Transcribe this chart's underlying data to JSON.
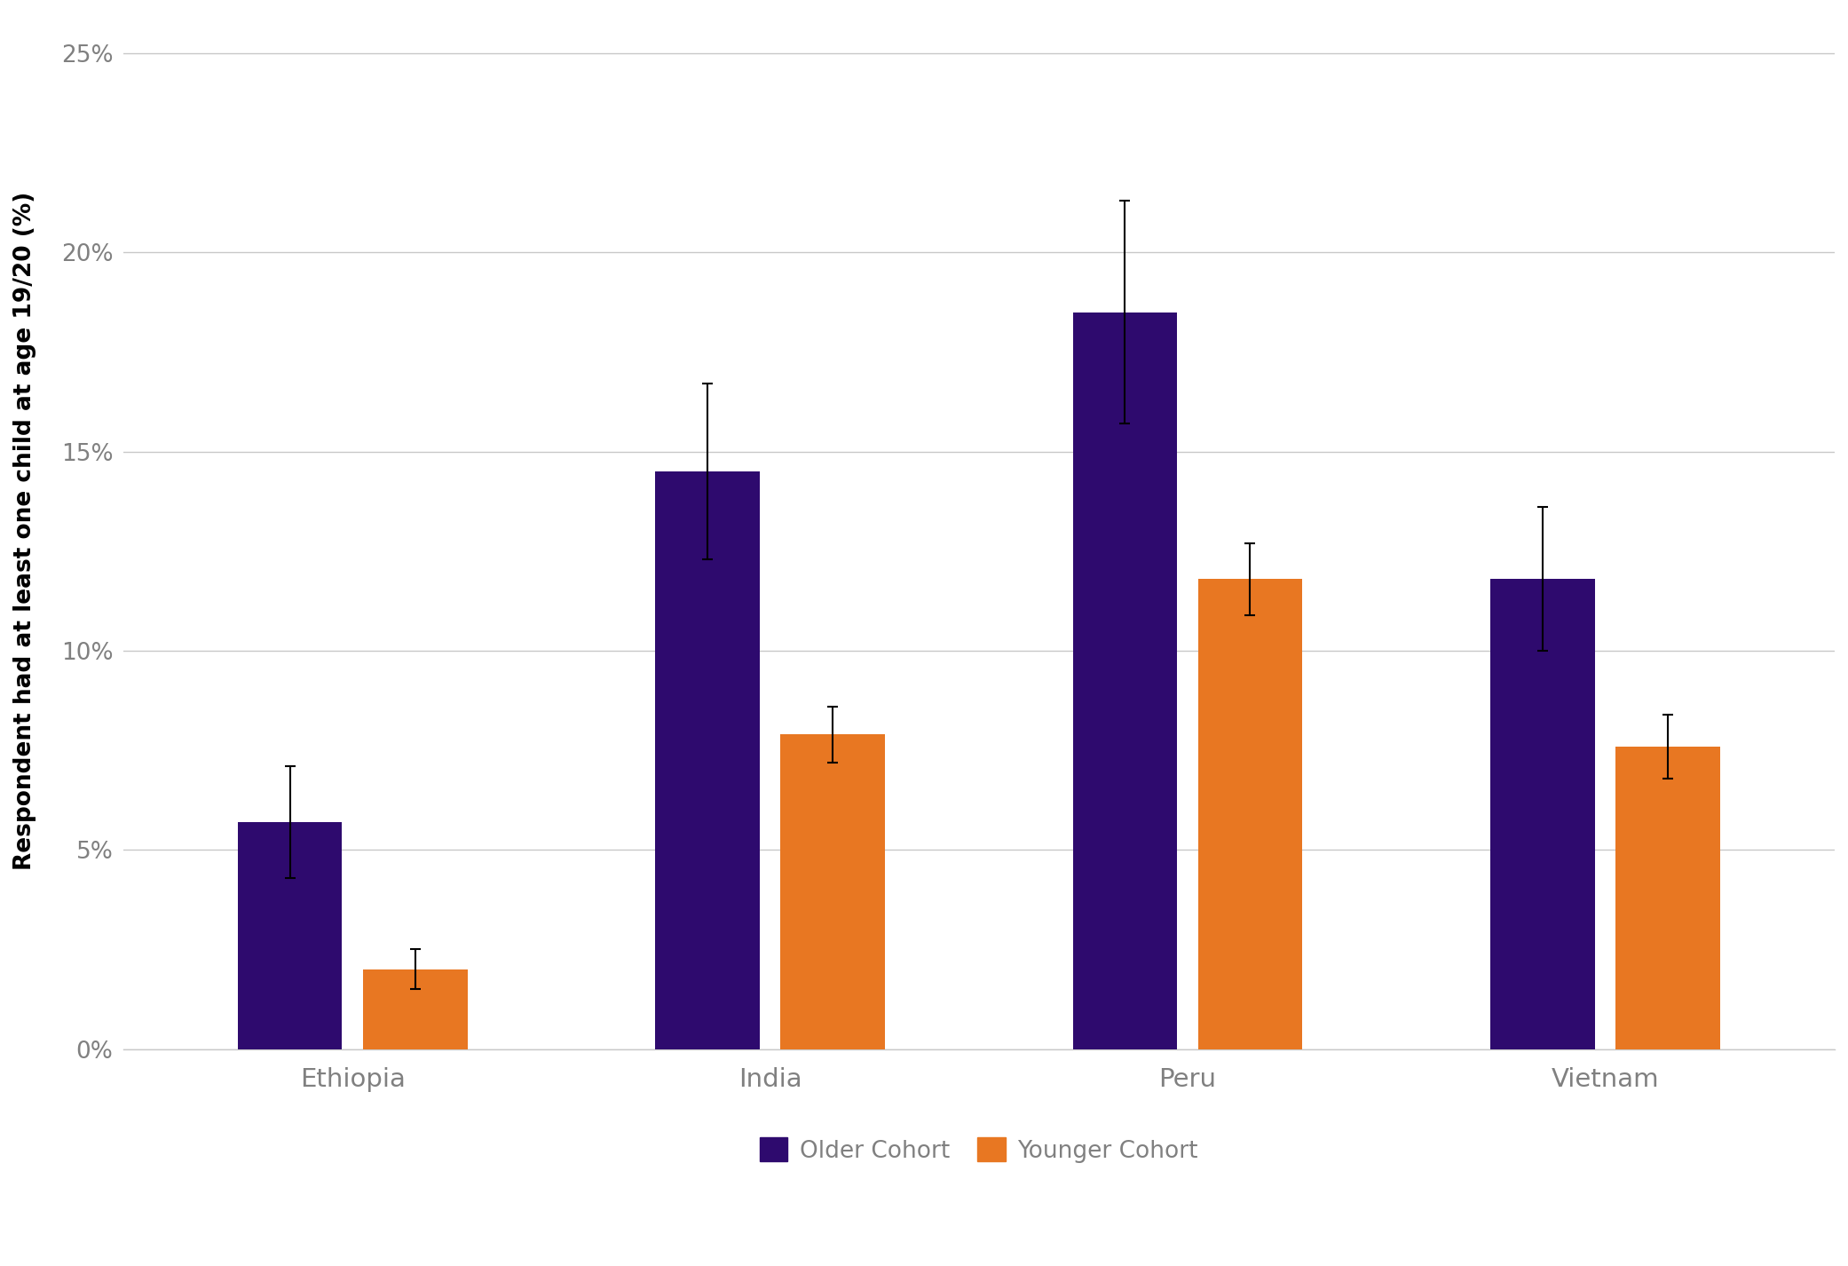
{
  "categories": [
    "Ethiopia",
    "India",
    "Peru",
    "Vietnam"
  ],
  "older_cohort": [
    5.7,
    14.5,
    18.5,
    11.8
  ],
  "younger_cohort": [
    2.0,
    7.9,
    11.8,
    7.6
  ],
  "older_err_low": [
    1.4,
    2.2,
    2.8,
    1.8
  ],
  "older_err_high": [
    1.4,
    2.2,
    2.8,
    1.8
  ],
  "younger_err_low": [
    0.5,
    0.7,
    0.9,
    0.8
  ],
  "younger_err_high": [
    0.5,
    0.7,
    0.9,
    0.8
  ],
  "older_color": "#2E0A6E",
  "younger_color": "#E87722",
  "ylabel": "Respondent had at least one child at age 19/20 (%)",
  "yticks": [
    0,
    5,
    10,
    15,
    20,
    25
  ],
  "ytick_labels": [
    "0%",
    "5%",
    "10%",
    "15%",
    "20%",
    "25%"
  ],
  "ylim": [
    0,
    26
  ],
  "bar_width": 0.25,
  "background_color": "#ffffff",
  "grid_color": "#c8c8c8",
  "tick_label_color": "#808080",
  "ylabel_color": "#000000",
  "legend_labels": [
    "Older Cohort",
    "Younger Cohort"
  ],
  "errorbar_color": "#000000",
  "errorbar_capsize": 4,
  "errorbar_linewidth": 1.5,
  "ylabel_fontsize": 19,
  "tick_fontsize": 19,
  "legend_fontsize": 19,
  "xtick_fontsize": 21
}
